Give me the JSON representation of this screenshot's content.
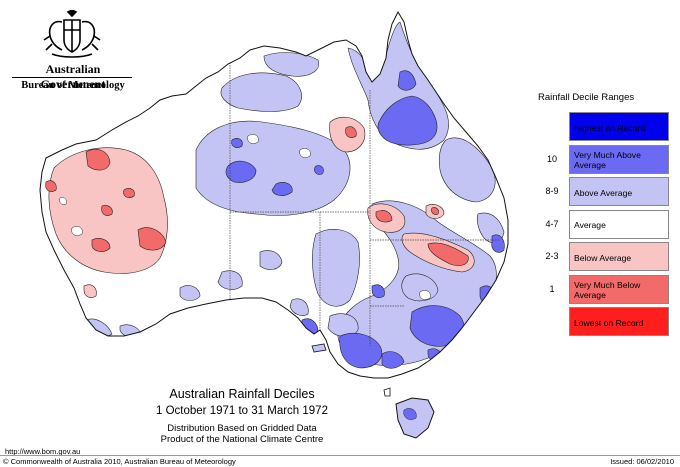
{
  "agency": {
    "government": "Australian Government",
    "bureau": "Bureau of Meteorology"
  },
  "titles": {
    "main": "Australian Rainfall Deciles",
    "period": "1 October 1971 to 31 March 1972",
    "line3": "Distribution Based on Gridded Data",
    "line4": "Product of the National Climate Centre"
  },
  "legend": {
    "title": "Rainfall Decile Ranges",
    "items": [
      {
        "range": "",
        "label": "Highest on Record",
        "color": "#0000ee"
      },
      {
        "range": "10",
        "label": "Very Much Above Average",
        "color": "#6a6af2"
      },
      {
        "range": "8-9",
        "label": "Above Average",
        "color": "#c4c4f4"
      },
      {
        "range": "4-7",
        "label": "Average",
        "color": "#ffffff"
      },
      {
        "range": "2-3",
        "label": "Below Average",
        "color": "#f9c4c4"
      },
      {
        "range": "1",
        "label": "Very Much Below Average",
        "color": "#f26a6a"
      },
      {
        "range": "",
        "label": "Lowest on Record",
        "color": "#ff1f1f"
      }
    ]
  },
  "footer": {
    "url": "http://www.bom.gov.au",
    "copyright": "© Commonwealth of Australia 2010, Australian Bureau of Meteorology",
    "issued": "Issued: 06/02/2010"
  },
  "colors": {
    "above_average": "#c4c4f4",
    "very_much_above": "#6a6af2",
    "below_average": "#f9c4c4",
    "very_much_below": "#f26a6a",
    "average": "#ffffff",
    "outline": "#222222"
  }
}
